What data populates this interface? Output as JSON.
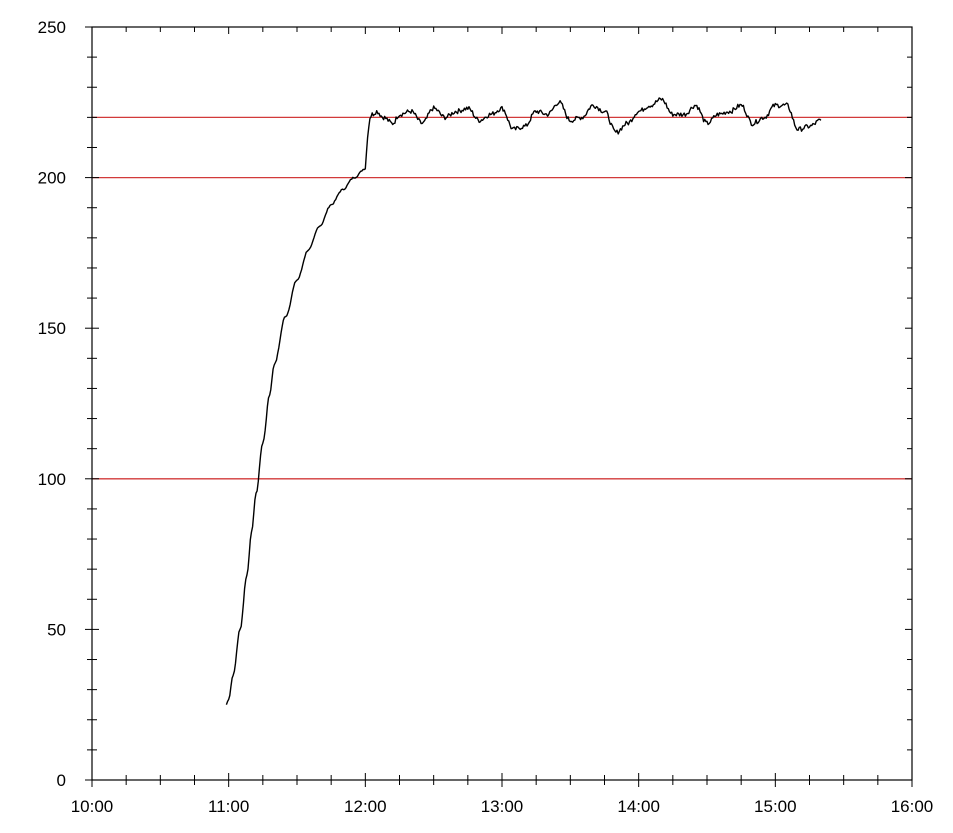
{
  "chart_data": {
    "type": "line",
    "title": "",
    "xlabel": "",
    "ylabel": "",
    "xlim": [
      "10:00",
      "16:00"
    ],
    "ylim": [
      0,
      250
    ],
    "x_ticks": [
      "10:00",
      "11:00",
      "12:00",
      "13:00",
      "14:00",
      "15:00",
      "16:00"
    ],
    "y_ticks": [
      "0",
      "50",
      "100",
      "150",
      "200",
      "250"
    ],
    "x_minor_step_minutes": 15,
    "y_minor_step": 10,
    "grid": false,
    "legend": "none",
    "reference_lines": [
      {
        "y": 100,
        "color": "#d23a3a"
      },
      {
        "y": 200,
        "color": "#d23a3a"
      },
      {
        "y": 220,
        "color": "#d23a3a"
      }
    ],
    "series": [
      {
        "color": "#000000",
        "x": [
          "10:59",
          "11:00",
          "11:02",
          "11:05",
          "11:08",
          "11:10",
          "11:12",
          "11:15",
          "11:18",
          "11:20",
          "11:25",
          "11:30",
          "11:35",
          "11:40",
          "11:45",
          "11:50",
          "11:55",
          "12:00",
          "12:01",
          "12:02",
          "12:03",
          "12:05",
          "12:08",
          "12:12",
          "12:15",
          "12:20",
          "12:25",
          "12:30",
          "12:35",
          "12:40",
          "12:45",
          "12:50",
          "12:55",
          "13:00",
          "13:05",
          "13:10",
          "13:15",
          "13:20",
          "13:25",
          "13:30",
          "13:35",
          "13:40",
          "13:45",
          "13:50",
          "13:55",
          "14:00",
          "14:05",
          "14:10",
          "14:15",
          "14:20",
          "14:25",
          "14:30",
          "14:35",
          "14:40",
          "14:45",
          "14:50",
          "14:55",
          "15:00",
          "15:05",
          "15:10",
          "15:15",
          "15:20"
        ],
        "y": [
          25,
          27,
          35,
          50,
          68,
          82,
          95,
          112,
          128,
          138,
          154,
          166,
          176,
          184,
          191,
          196,
          200,
          203,
          214,
          220,
          221,
          222,
          220,
          218,
          221,
          222,
          218,
          223,
          220,
          222,
          223,
          219,
          221,
          223,
          216,
          217,
          222,
          221,
          225,
          219,
          220,
          224,
          222,
          215,
          218,
          222,
          224,
          226,
          221,
          221,
          224,
          218,
          221,
          222,
          224,
          218,
          220,
          224,
          224,
          216,
          217,
          219
        ]
      }
    ]
  }
}
